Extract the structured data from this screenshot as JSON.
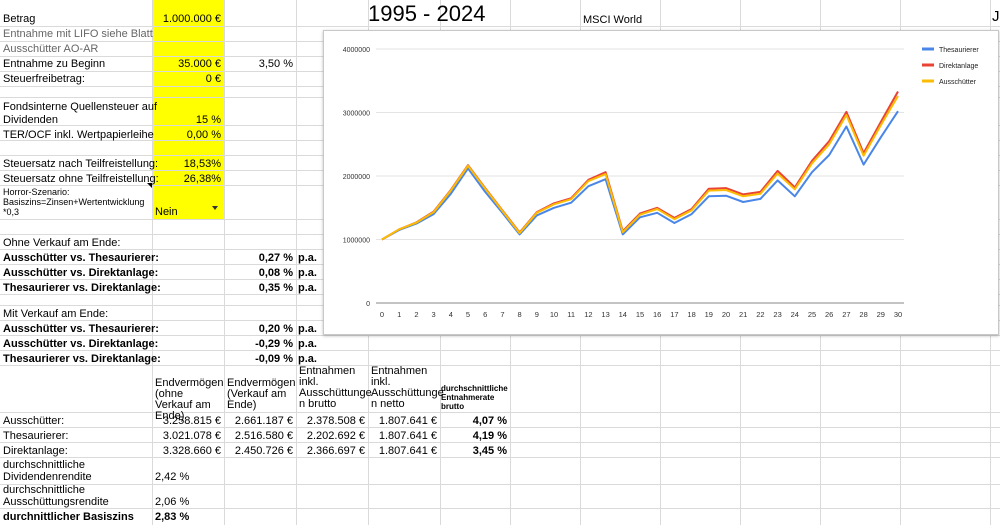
{
  "header": {
    "title": "1995 - 2024",
    "index": "MSCI World",
    "edge_char": "J"
  },
  "params": {
    "betrag_label": "Betrag",
    "betrag_value": "1.000.000 €",
    "lifo_label": "Entnahme mit LIFO siehe Blatt",
    "ausschuetter_label": "Ausschütter AO-AR",
    "entnahme_label": "Entnahme zu Beginn",
    "entnahme_value": "35.000 €",
    "entnahme_pct": "3,50 %",
    "steuerfrei_label": "Steuerfreibetrag:",
    "steuerfrei_value": "0 €",
    "quellen_label_1": "Fondsinterne Quellensteuer auf",
    "quellen_label_2": "Dividenden",
    "quellen_value": "15 %",
    "ter_label": "TER/OCF inkl. Wertpapierleihe",
    "ter_value": "0,00 %",
    "steuer_nach_label": "Steuersatz nach Teilfreistellung:",
    "steuer_nach_value": "18,53%",
    "steuer_ohne_label": "Steuersatz ohne Teilfreistellung:",
    "steuer_ohne_value": "26,38%",
    "horror_label_1": "Horror-Szenario:",
    "horror_label_2": "Basiszins=Zinsen+Wertentwicklung",
    "horror_label_3": "*0,3",
    "horror_value": "Nein"
  },
  "ohne_verkauf": {
    "heading": "Ohne Verkauf am Ende:",
    "rows": [
      {
        "label": "Ausschütter vs. Thesaurierer:",
        "value": "0,27 %",
        "unit": "p.a."
      },
      {
        "label": "Ausschütter vs. Direktanlage:",
        "value": "0,08 %",
        "unit": "p.a."
      },
      {
        "label": "Thesaurierer vs. Direktanlage:",
        "value": "0,35 %",
        "unit": "p.a."
      }
    ]
  },
  "mit_verkauf": {
    "heading": "Mit Verkauf am Ende:",
    "rows": [
      {
        "label": "Ausschütter vs. Thesaurierer:",
        "value": "0,20 %",
        "unit": "p.a."
      },
      {
        "label": "Ausschütter vs. Direktanlage:",
        "value": "-0,29 %",
        "unit": "p.a."
      },
      {
        "label": "Thesaurierer vs. Direktanlage:",
        "value": "-0,09 %",
        "unit": "p.a."
      }
    ]
  },
  "table": {
    "headers": [
      "Endvermögen (ohne Verkauf am Ende)",
      "Endvermögen (Verkauf am Ende)",
      "Entnahmen inkl. Ausschüttunge n brutto",
      "Entnahmen inkl. Ausschüttunge n netto",
      "durchschnittliche Entnahmerate brutto"
    ],
    "rows": [
      {
        "label": "Ausschütter:",
        "cells": [
          "3.258.815 €",
          "2.661.187 €",
          "2.378.508 €",
          "1.807.641 €",
          "4,07 %"
        ]
      },
      {
        "label": "Thesaurierer:",
        "cells": [
          "3.021.078 €",
          "2.516.580 €",
          "2.202.692 €",
          "1.807.641 €",
          "4,19 %"
        ]
      },
      {
        "label": "Direktanlage:",
        "cells": [
          "3.328.660 €",
          "2.450.726 €",
          "2.366.697 €",
          "1.807.641 €",
          "3,45 %"
        ]
      }
    ]
  },
  "footer": {
    "div_label_1": "durchschnittliche",
    "div_label_2": "Dividendenrendite",
    "div_value": "2,42 %",
    "aus_label_1": "durchschnittliche",
    "aus_label_2": "Ausschüttungsrendite",
    "aus_value": "2,06 %",
    "basis_label": "durchnittlicher Basiszins",
    "basis_value": "2,83 %"
  },
  "colors": {
    "yellow": "#ffff00",
    "thesaurierer": "#4a86e8",
    "direktanlage": "#ea4335",
    "ausschuetter": "#fbbc04"
  },
  "chart_data": {
    "type": "line",
    "title": "",
    "xlabel": "",
    "ylabel": "",
    "x": [
      0,
      1,
      2,
      3,
      4,
      5,
      6,
      7,
      8,
      9,
      10,
      11,
      12,
      13,
      14,
      15,
      16,
      17,
      18,
      19,
      20,
      21,
      22,
      23,
      24,
      25,
      26,
      27,
      28,
      29,
      30
    ],
    "yticks": [
      "0",
      "1000000",
      "2000000",
      "3000000",
      "4000000"
    ],
    "ylim": [
      0,
      4000000
    ],
    "legend": "right",
    "grid": true,
    "series": [
      {
        "name": "Thesaurierer",
        "color": "#4a86e8",
        "values": [
          1000000,
          1150000,
          1250000,
          1400000,
          1720000,
          2120000,
          1750000,
          1420000,
          1080000,
          1380000,
          1500000,
          1580000,
          1840000,
          1950000,
          1080000,
          1350000,
          1420000,
          1260000,
          1400000,
          1680000,
          1690000,
          1590000,
          1640000,
          1930000,
          1680000,
          2060000,
          2330000,
          2780000,
          2180000,
          2610000,
          3020000
        ]
      },
      {
        "name": "Direktanlage",
        "color": "#ea4335",
        "values": [
          1000000,
          1160000,
          1270000,
          1440000,
          1780000,
          2170000,
          1810000,
          1460000,
          1110000,
          1430000,
          1570000,
          1650000,
          1940000,
          2060000,
          1130000,
          1410000,
          1500000,
          1340000,
          1480000,
          1800000,
          1810000,
          1710000,
          1750000,
          2080000,
          1820000,
          2240000,
          2550000,
          3010000,
          2360000,
          2850000,
          3330000
        ]
      },
      {
        "name": "Ausschütter",
        "color": "#fbbc04",
        "values": [
          1000000,
          1160000,
          1265000,
          1430000,
          1770000,
          2160000,
          1800000,
          1450000,
          1100000,
          1420000,
          1555000,
          1635000,
          1920000,
          2030000,
          1115000,
          1390000,
          1480000,
          1320000,
          1460000,
          1770000,
          1780000,
          1680000,
          1720000,
          2040000,
          1790000,
          2200000,
          2500000,
          2960000,
          2320000,
          2800000,
          3260000
        ]
      }
    ]
  }
}
